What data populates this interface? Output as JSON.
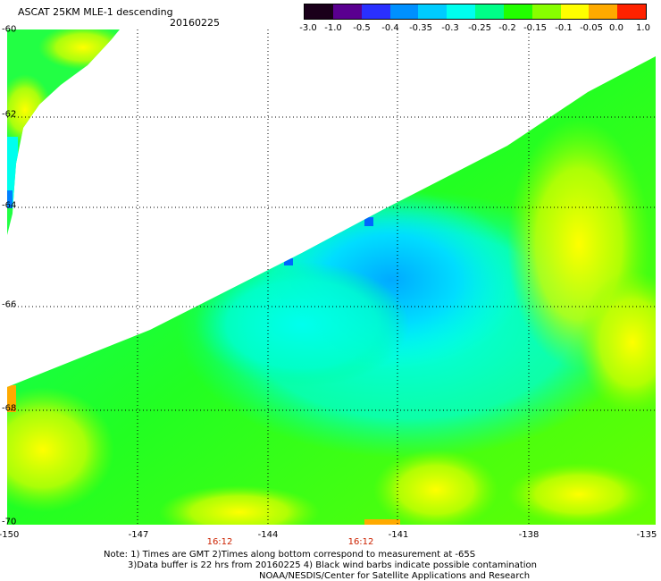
{
  "header": {
    "title": "ASCAT 25KM MLE-1 descending",
    "date": "20160225"
  },
  "colorbar": {
    "labels": [
      "-3.0",
      "-1.0",
      "-0.5",
      "-0.4",
      "-0.35",
      "-0.3",
      "-0.25",
      "-0.2",
      "-0.15",
      "-0.1",
      "-0.05",
      "0.0",
      "1.0"
    ],
    "colors": [
      "#1a001a",
      "#5a0090",
      "#2a30ff",
      "#0090ff",
      "#00ccff",
      "#00ffee",
      "#00ff88",
      "#22ff00",
      "#88ff00",
      "#ffff00",
      "#ffaa00",
      "#ff2200"
    ]
  },
  "axes": {
    "lat_labels": [
      "-60",
      "-62",
      "-64",
      "-66",
      "-68",
      "-70"
    ],
    "lon_labels": [
      "-150",
      "-147",
      "-144",
      "-141",
      "-138",
      "-135"
    ],
    "time_labels": [
      "16:12",
      "16:12"
    ]
  },
  "notes": [
    "Note: 1) Times are GMT 2)Times along bottom correspond to measurement at -65S",
    "3)Data buffer is 22 hrs from 20160225 4) Black wind barbs indicate possible contamination",
    "NOAA/NESDIS/Center for Satellite Applications and Research"
  ]
}
